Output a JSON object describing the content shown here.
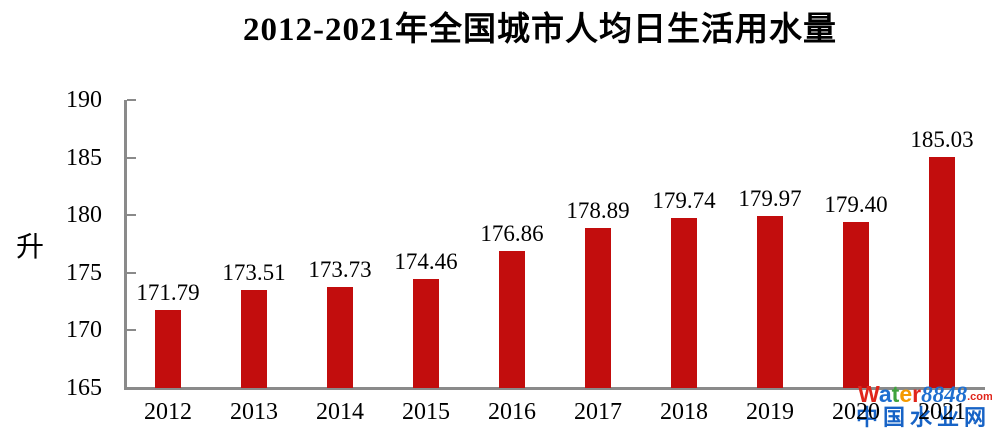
{
  "title": "2012-2021年全国城市人均日生活用水量",
  "chart_data": {
    "type": "bar",
    "title": "2012-2021年全国城市人均日生活用水量",
    "categories": [
      "2012",
      "2013",
      "2014",
      "2015",
      "2016",
      "2017",
      "2018",
      "2019",
      "2020",
      "2021"
    ],
    "values": [
      171.79,
      173.51,
      173.73,
      174.46,
      176.86,
      178.89,
      179.74,
      179.97,
      179.4,
      185.03
    ],
    "value_labels": [
      "171.79",
      "173.51",
      "173.73",
      "174.46",
      "176.86",
      "178.89",
      "179.74",
      "179.97",
      "179.40",
      "185.03"
    ],
    "xlabel": "",
    "ylabel": "升",
    "ylim": [
      165,
      190
    ],
    "yticks": [
      190,
      185,
      180,
      175,
      170,
      165
    ],
    "grid": false,
    "legend": "none",
    "bar_color": "#c20d0d",
    "axis_color": "#8a8a8a",
    "label_color": "#000000"
  },
  "watermark": {
    "logo_letters": [
      {
        "ch": "W",
        "color": "#e0251b"
      },
      {
        "ch": "a",
        "color": "#1f6fd0"
      },
      {
        "ch": "t",
        "color": "#3fa33c"
      },
      {
        "ch": "e",
        "color": "#f59a00"
      },
      {
        "ch": "r",
        "color": "#e0251b"
      }
    ],
    "logo_number": "8848",
    "logo_number_color": "#1f6fd0",
    "logo_suffix": ".com",
    "logo_suffix_color": "#e0251b",
    "caption": "中国水业网",
    "caption_color": "#1763c6"
  }
}
